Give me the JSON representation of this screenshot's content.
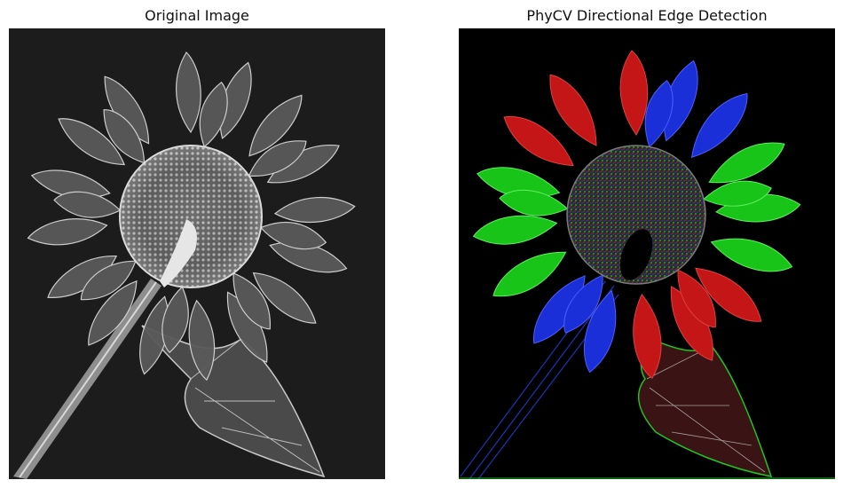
{
  "figure": {
    "left_title": "Original Image",
    "right_title": "PhyCV Directional Edge Detection"
  },
  "images": {
    "left": {
      "subject": "sunflower-xray-grayscale",
      "background": "#1c1c1c"
    },
    "right": {
      "subject": "sunflower-directional-edges",
      "background": "#000000",
      "edge_colors": [
        "#d01818",
        "#1a2fd8",
        "#19c419"
      ]
    }
  }
}
